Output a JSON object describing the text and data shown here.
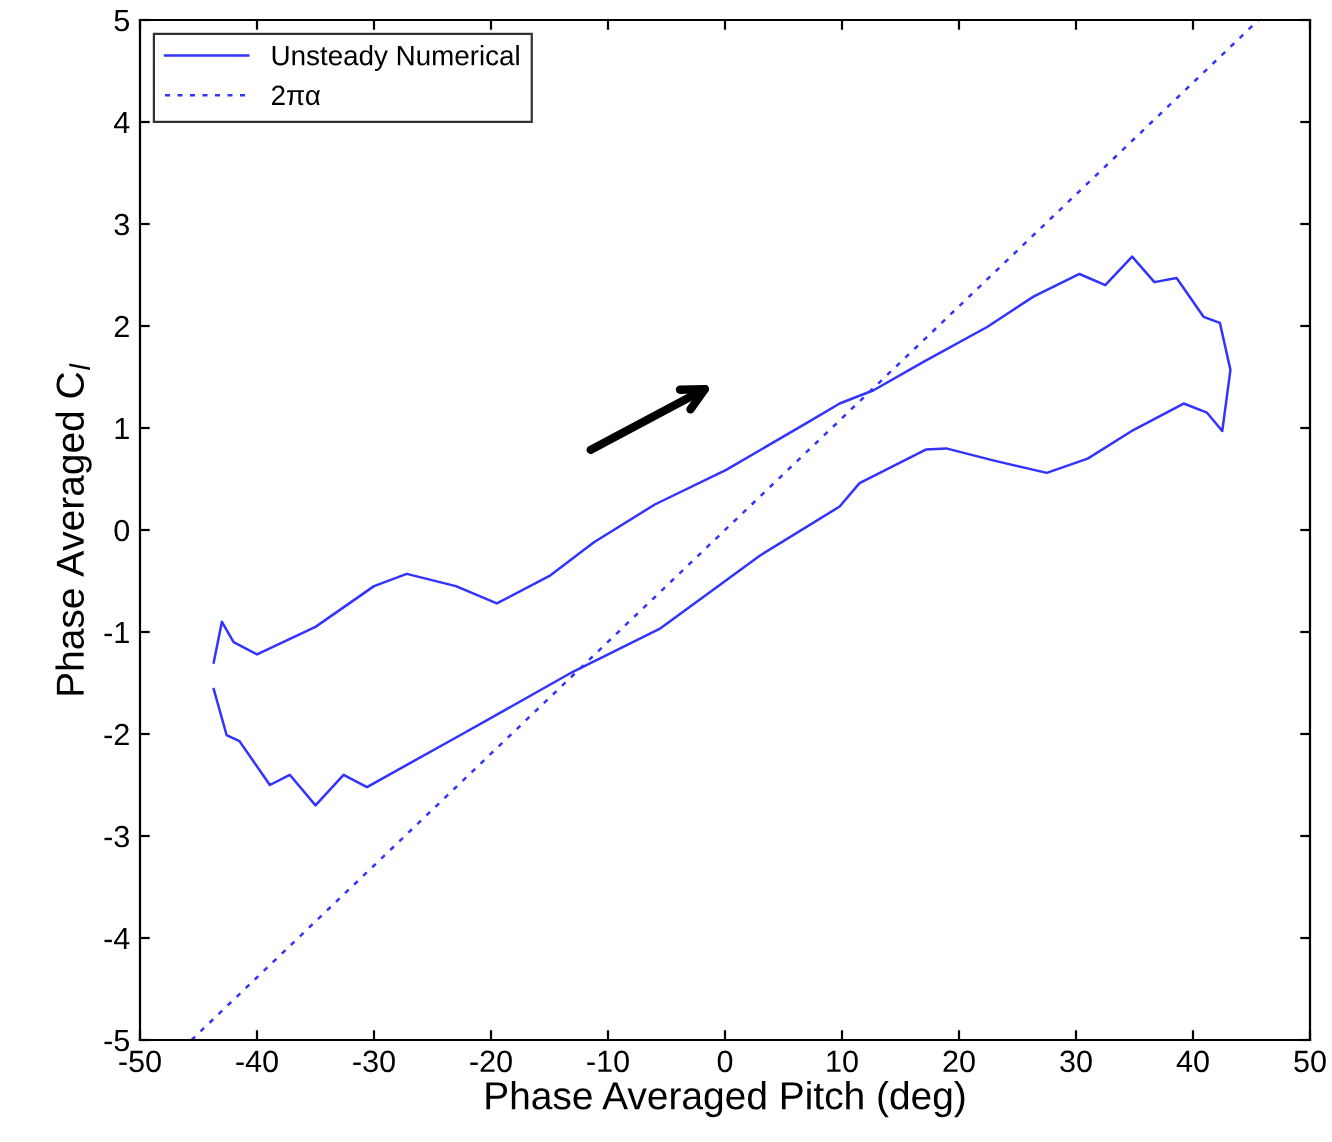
{
  "chart_data": {
    "type": "line",
    "xlabel": "Phase Averaged Pitch (deg)",
    "ylabel": "Phase Averaged C$_{l}$",
    "xlim": [
      -50,
      50
    ],
    "ylim": [
      -5,
      5
    ],
    "xticks": [
      -50,
      -40,
      -30,
      -20,
      -10,
      0,
      10,
      20,
      30,
      40,
      50
    ],
    "yticks": [
      -5,
      -4,
      -3,
      -2,
      -1,
      0,
      1,
      2,
      3,
      4,
      5
    ],
    "grid": false,
    "legend": "top left",
    "series": [
      {
        "name": "Unsteady Numerical",
        "color": "#3333ff",
        "line_style": "solid",
        "x": [
          -43.7,
          -43.0,
          -42.0,
          -40.0,
          -35,
          -30,
          -27.2,
          -23,
          -19.5,
          -15,
          -11.2,
          -6,
          0.1,
          7.0,
          9.8,
          12.7,
          17,
          22.4,
          26.4,
          30.3,
          32.5,
          34.8,
          36.7,
          38.6,
          40.9,
          42.3,
          43.2,
          42.5,
          41.2,
          39.2,
          34.9,
          31,
          27.5,
          23,
          18.9,
          17.2,
          11.5,
          9.8,
          3.0,
          -5.6,
          -13,
          -22.6,
          -30.6,
          -32.6,
          -35.0,
          -37.2,
          -38.9,
          -41.5,
          -42.6,
          -43.7
        ],
        "values": [
          -1.3,
          -0.9,
          -1.1,
          -1.22,
          -0.95,
          -0.55,
          -0.43,
          -0.55,
          -0.72,
          -0.45,
          -0.12,
          0.25,
          0.59,
          1.05,
          1.24,
          1.37,
          1.65,
          1.99,
          2.29,
          2.51,
          2.4,
          2.68,
          2.43,
          2.47,
          2.09,
          2.03,
          1.57,
          0.97,
          1.15,
          1.24,
          0.98,
          0.7,
          0.56,
          0.68,
          0.8,
          0.79,
          0.46,
          0.23,
          -0.25,
          -0.97,
          -1.39,
          -2.01,
          -2.52,
          -2.4,
          -2.7,
          -2.4,
          -2.5,
          -2.07,
          -2.01,
          -1.56
        ]
      },
      {
        "name": "2πα",
        "color": "#3333ff",
        "line_style": "dotted",
        "x": [
          -45.6,
          45.6
        ],
        "values": [
          -5,
          5
        ]
      }
    ]
  }
}
